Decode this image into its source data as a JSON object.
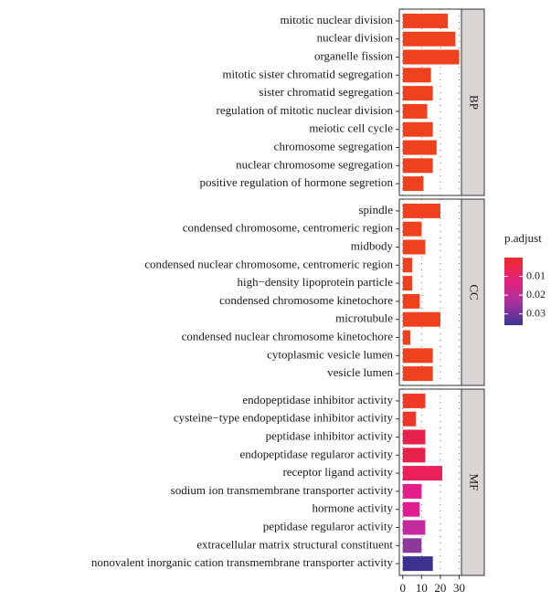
{
  "chart_data": {
    "type": "bar",
    "orientation": "horizontal",
    "xlim": [
      -1.8,
      31.2
    ],
    "xticks": [
      0,
      10,
      20,
      30
    ],
    "grid": true,
    "facets": [
      {
        "name": "BP",
        "categories": [
          "mitotic nuclear division",
          "nuclear division",
          "organelle fission",
          "mitotic sister chromatid segregation",
          "sister chromatid segregation",
          "regulation of mitotic nuclear division",
          "meiotic cell cycle",
          "chromosome segregation",
          "nuclear chromosome segregation",
          "positive regulation of hormone segretion"
        ],
        "values": [
          24,
          28,
          30,
          15,
          16,
          13,
          16,
          18,
          16,
          11
        ],
        "colors": [
          "#f0411f",
          "#f0411f",
          "#f0411f",
          "#f0411f",
          "#f0411f",
          "#f0411f",
          "#f0411f",
          "#f0411f",
          "#f0411f",
          "#f0411f"
        ]
      },
      {
        "name": "CC",
        "categories": [
          "spindle",
          "condensed chromosome, centromeric region",
          "midbody",
          "condensed nuclear chromosome, centromeric region",
          "high−density lipoprotein particle",
          "condensed chromosome kinetochore",
          "microtubule",
          "condensed nuclear chromosome kinetochore",
          "cytoplasmic vesicle lumen",
          "vesicle lumen"
        ],
        "values": [
          20,
          10,
          12,
          5,
          5,
          9,
          20,
          4,
          16,
          16
        ],
        "colors": [
          "#f0411f",
          "#f0411f",
          "#f0411f",
          "#f0411f",
          "#f0411f",
          "#f0411f",
          "#f0411f",
          "#f0411f",
          "#f0411f",
          "#f0411f"
        ]
      },
      {
        "name": "MF",
        "categories": [
          "endopeptidase inhibitor activity",
          "cysteine−type endopeptidase inhibitor activity",
          "peptidase inhibitor activity",
          "endopeptidase regularor activity",
          "receptor ligand activity",
          "sodium ion transmembrane transporter activity",
          "hormone activity",
          "peptidase regularor activity",
          "extracellular matrix structural constituent",
          "nonovalent inorganic cation transmembrane transporter activity"
        ],
        "values": [
          12,
          7,
          12,
          12,
          21,
          10,
          9,
          12,
          10,
          16
        ],
        "colors": [
          "#ef3a25",
          "#ee3528",
          "#e8214a",
          "#e8214a",
          "#ea1f5c",
          "#e31d8a",
          "#e01d8e",
          "#c52b9e",
          "#8b3a9b",
          "#3b3190"
        ]
      }
    ],
    "legend": {
      "title": "p.adjust",
      "lim": [
        0.0,
        0.036
      ],
      "ticks": [
        0.01,
        0.02,
        0.03
      ],
      "colors": [
        "#ee2b2b",
        "#e4207a",
        "#a8329e",
        "#3d3494"
      ]
    }
  }
}
